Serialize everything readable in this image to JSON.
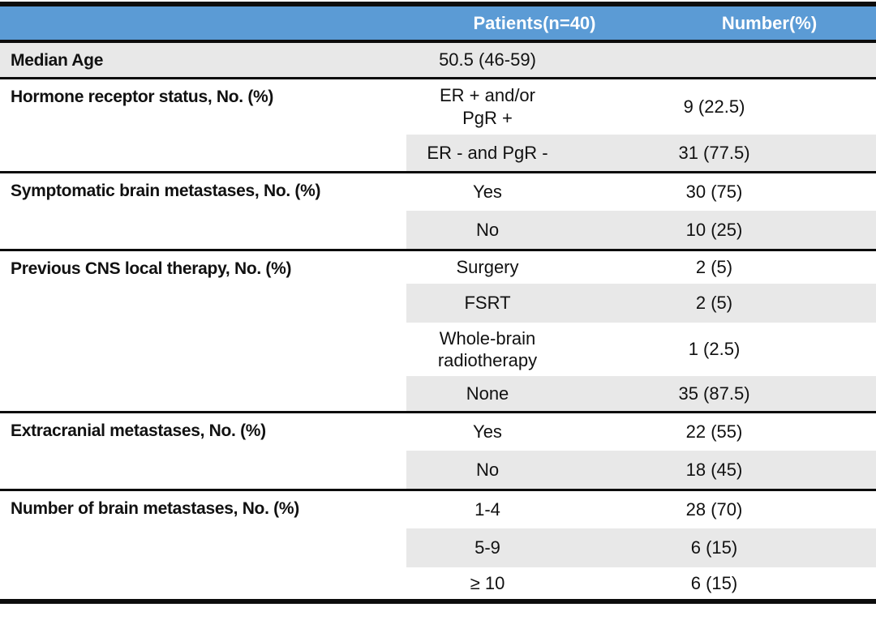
{
  "colors": {
    "header_bg": "#5B9BD5",
    "header_text": "#FFFFFF",
    "row_shade": "#E8E8E8",
    "border": "#0C0C0C"
  },
  "header": {
    "spacer": "",
    "patients": "Patients(n=40)",
    "number": "Number(%)"
  },
  "sections": [
    {
      "label": "Median Age",
      "rows": [
        {
          "value": "50.5 (46-59)",
          "number": ""
        }
      ]
    },
    {
      "label": "Hormone receptor status, No. (%)",
      "rows": [
        {
          "value": "ER + and/or\nPgR +",
          "number": "9 (22.5)"
        },
        {
          "value": "ER - and PgR -",
          "number": "31 (77.5)"
        }
      ]
    },
    {
      "label": "Symptomatic brain metastases, No. (%)",
      "rows": [
        {
          "value": "Yes",
          "number": "30 (75)"
        },
        {
          "value": "No",
          "number": "10 (25)"
        }
      ]
    },
    {
      "label": "Previous CNS local therapy, No. (%)",
      "rows": [
        {
          "value": "Surgery",
          "number": "2 (5)"
        },
        {
          "value": "FSRT",
          "number": "2 (5)"
        },
        {
          "value": "Whole-brain\nradiotherapy",
          "number": "1 (2.5)"
        },
        {
          "value": "None",
          "number": "35 (87.5)"
        }
      ]
    },
    {
      "label": "Extracranial metastases, No. (%)",
      "rows": [
        {
          "value": "Yes",
          "number": "22 (55)"
        },
        {
          "value": "No",
          "number": "18 (45)"
        }
      ]
    },
    {
      "label": "Number of brain metastases, No. (%)",
      "rows": [
        {
          "value": "1-4",
          "number": "28 (70)"
        },
        {
          "value": "5-9",
          "number": "6 (15)"
        },
        {
          "value": "≥ 10",
          "number": "6 (15)"
        }
      ]
    }
  ]
}
